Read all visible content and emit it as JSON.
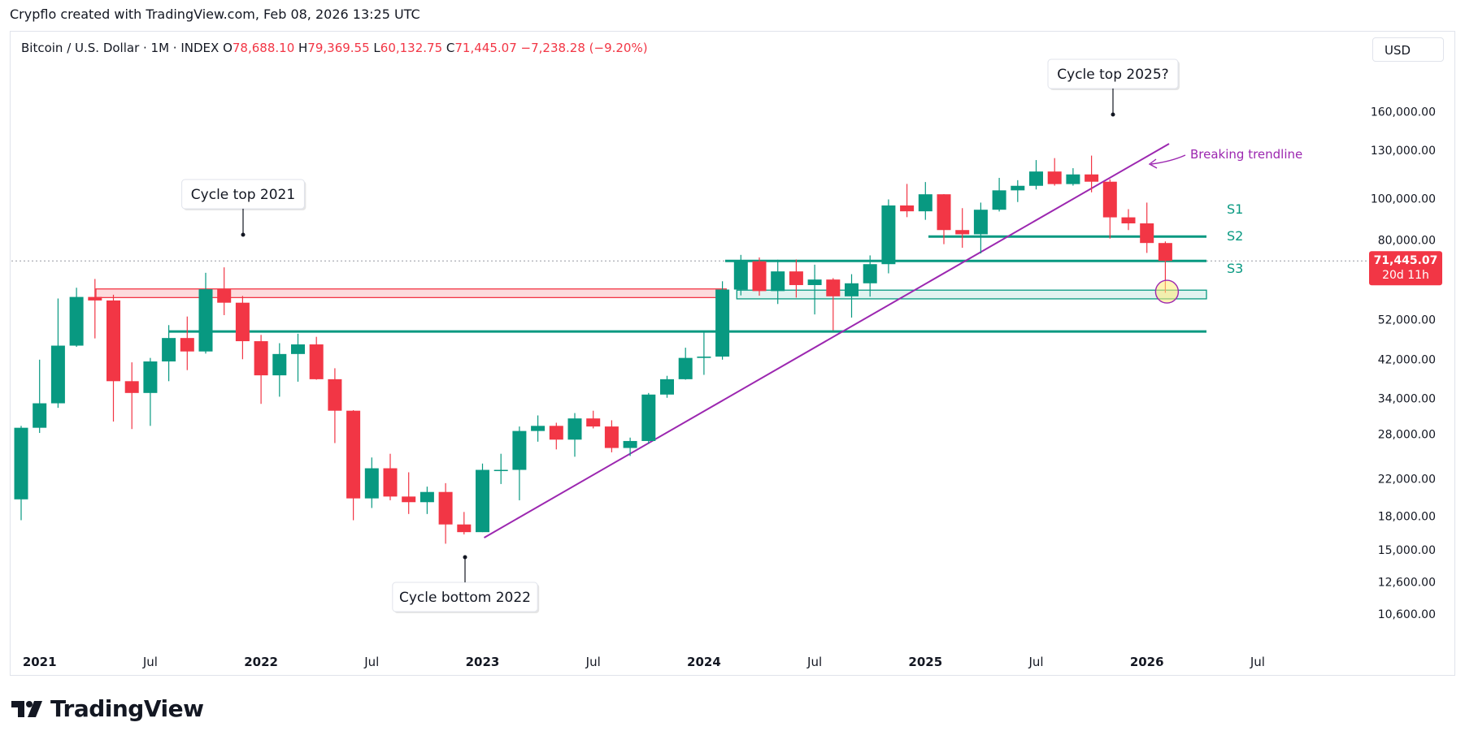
{
  "header": {
    "credit": "Crypflo created with TradingView.com, Feb 08, 2026 13:25 UTC"
  },
  "legend": {
    "symbol": "Bitcoin / U.S. Dollar · 1M · INDEX",
    "open_label": "O",
    "open": "78,688.10",
    "high_label": "H",
    "high": "79,369.55",
    "low_label": "L",
    "low": "60,132.75",
    "close_label": "C",
    "close": "71,445.07",
    "change": "−7,238.28 (−9.20%)"
  },
  "currency_button": "USD",
  "price_tag": {
    "price": "71,445.07",
    "countdown": "20d 11h"
  },
  "brand": {
    "name": "TradingView"
  },
  "colors": {
    "up": "#089981",
    "down": "#f23645",
    "trend": "#9c27b0",
    "level": "#089981",
    "resistance": "#f23645"
  },
  "chart_data": {
    "type": "candlestick",
    "title": "Bitcoin / U.S. Dollar · 1M · INDEX",
    "scale": "log",
    "y_ticks": [
      160000,
      130000,
      100000,
      80000,
      52000,
      42000,
      34000,
      28000,
      22000,
      18000,
      15000,
      12600,
      10600
    ],
    "y_tick_labels": [
      "160,000.00",
      "130,000.00",
      "100,000.00",
      "80,000.00",
      "52,000.00",
      "42,000.00",
      "34,000.00",
      "28,000.00",
      "22,000.00",
      "18,000.00",
      "15,000.00",
      "12,600.00",
      "10,600.00"
    ],
    "x_labels": [
      "2021",
      "Jul",
      "2022",
      "Jul",
      "2023",
      "Jul",
      "2024",
      "Jul",
      "2025",
      "Jul",
      "2026",
      "Jul"
    ],
    "candles": [
      {
        "t": "2020-12",
        "o": 19700,
        "h": 29300,
        "l": 17600,
        "c": 29000
      },
      {
        "t": "2021-01",
        "o": 29000,
        "h": 41900,
        "l": 28200,
        "c": 33100
      },
      {
        "t": "2021-02",
        "o": 33100,
        "h": 58300,
        "l": 32300,
        "c": 45200
      },
      {
        "t": "2021-03",
        "o": 45200,
        "h": 61800,
        "l": 44900,
        "c": 58800
      },
      {
        "t": "2021-04",
        "o": 58800,
        "h": 64800,
        "l": 47000,
        "c": 57700
      },
      {
        "t": "2021-05",
        "o": 57700,
        "h": 59500,
        "l": 30000,
        "c": 37300
      },
      {
        "t": "2021-06",
        "o": 37300,
        "h": 41300,
        "l": 28800,
        "c": 35000
      },
      {
        "t": "2021-07",
        "o": 35000,
        "h": 42300,
        "l": 29300,
        "c": 41500
      },
      {
        "t": "2021-08",
        "o": 41500,
        "h": 50500,
        "l": 37300,
        "c": 47100
      },
      {
        "t": "2021-09",
        "o": 47100,
        "h": 52900,
        "l": 39600,
        "c": 43800
      },
      {
        "t": "2021-10",
        "o": 43800,
        "h": 67000,
        "l": 43300,
        "c": 61300
      },
      {
        "t": "2021-11",
        "o": 61300,
        "h": 69000,
        "l": 53300,
        "c": 57000
      },
      {
        "t": "2021-12",
        "o": 57000,
        "h": 59100,
        "l": 42000,
        "c": 46300
      },
      {
        "t": "2022-01",
        "o": 46300,
        "h": 47900,
        "l": 33000,
        "c": 38500
      },
      {
        "t": "2022-02",
        "o": 38500,
        "h": 45800,
        "l": 34300,
        "c": 43200
      },
      {
        "t": "2022-03",
        "o": 43200,
        "h": 48200,
        "l": 37200,
        "c": 45500
      },
      {
        "t": "2022-04",
        "o": 45500,
        "h": 47400,
        "l": 37600,
        "c": 37700
      },
      {
        "t": "2022-05",
        "o": 37700,
        "h": 40000,
        "l": 26700,
        "c": 31800
      },
      {
        "t": "2022-06",
        "o": 31800,
        "h": 31900,
        "l": 17600,
        "c": 19800
      },
      {
        "t": "2022-07",
        "o": 19800,
        "h": 24700,
        "l": 18800,
        "c": 23300
      },
      {
        "t": "2022-08",
        "o": 23300,
        "h": 25200,
        "l": 19600,
        "c": 20000
      },
      {
        "t": "2022-09",
        "o": 20000,
        "h": 22800,
        "l": 18200,
        "c": 19400
      },
      {
        "t": "2022-10",
        "o": 19400,
        "h": 21100,
        "l": 18200,
        "c": 20500
      },
      {
        "t": "2022-11",
        "o": 20500,
        "h": 21500,
        "l": 15500,
        "c": 17200
      },
      {
        "t": "2022-12",
        "o": 17200,
        "h": 18400,
        "l": 16300,
        "c": 16500
      },
      {
        "t": "2023-01",
        "o": 16500,
        "h": 23900,
        "l": 16500,
        "c": 23100
      },
      {
        "t": "2023-02",
        "o": 23100,
        "h": 25200,
        "l": 21400,
        "c": 23100
      },
      {
        "t": "2023-03",
        "o": 23100,
        "h": 29200,
        "l": 19600,
        "c": 28500
      },
      {
        "t": "2023-04",
        "o": 28500,
        "h": 31000,
        "l": 26900,
        "c": 29300
      },
      {
        "t": "2023-05",
        "o": 29300,
        "h": 29800,
        "l": 25800,
        "c": 27200
      },
      {
        "t": "2023-06",
        "o": 27200,
        "h": 31400,
        "l": 24800,
        "c": 30500
      },
      {
        "t": "2023-07",
        "o": 30500,
        "h": 31800,
        "l": 28900,
        "c": 29200
      },
      {
        "t": "2023-08",
        "o": 29200,
        "h": 30200,
        "l": 25400,
        "c": 26000
      },
      {
        "t": "2023-09",
        "o": 26000,
        "h": 27500,
        "l": 24900,
        "c": 27000
      },
      {
        "t": "2023-10",
        "o": 27000,
        "h": 35000,
        "l": 26600,
        "c": 34700
      },
      {
        "t": "2023-11",
        "o": 34700,
        "h": 38400,
        "l": 34100,
        "c": 37700
      },
      {
        "t": "2023-12",
        "o": 37700,
        "h": 44700,
        "l": 37600,
        "c": 42300
      },
      {
        "t": "2024-01",
        "o": 42300,
        "h": 48900,
        "l": 38600,
        "c": 42600
      },
      {
        "t": "2024-02",
        "o": 42600,
        "h": 64000,
        "l": 41900,
        "c": 61200
      },
      {
        "t": "2024-03",
        "o": 61200,
        "h": 73800,
        "l": 59300,
        "c": 71300
      },
      {
        "t": "2024-04",
        "o": 71300,
        "h": 72800,
        "l": 59200,
        "c": 60700
      },
      {
        "t": "2024-05",
        "o": 60700,
        "h": 71900,
        "l": 56600,
        "c": 67500
      },
      {
        "t": "2024-06",
        "o": 67500,
        "h": 72000,
        "l": 58600,
        "c": 62700
      },
      {
        "t": "2024-07",
        "o": 62700,
        "h": 70000,
        "l": 53500,
        "c": 64600
      },
      {
        "t": "2024-08",
        "o": 64600,
        "h": 65100,
        "l": 49100,
        "c": 59000
      },
      {
        "t": "2024-09",
        "o": 59000,
        "h": 66500,
        "l": 52600,
        "c": 63300
      },
      {
        "t": "2024-10",
        "o": 63300,
        "h": 73600,
        "l": 58900,
        "c": 70200
      },
      {
        "t": "2024-11",
        "o": 70200,
        "h": 99600,
        "l": 66800,
        "c": 96400
      },
      {
        "t": "2024-12",
        "o": 96400,
        "h": 108300,
        "l": 90500,
        "c": 93400
      },
      {
        "t": "2025-01",
        "o": 93400,
        "h": 109400,
        "l": 89200,
        "c": 102400
      },
      {
        "t": "2025-02",
        "o": 102400,
        "h": 102500,
        "l": 78200,
        "c": 84400
      },
      {
        "t": "2025-03",
        "o": 84400,
        "h": 95000,
        "l": 76700,
        "c": 82500
      },
      {
        "t": "2025-04",
        "o": 82500,
        "h": 97900,
        "l": 74400,
        "c": 94200
      },
      {
        "t": "2025-05",
        "o": 94200,
        "h": 111900,
        "l": 93300,
        "c": 104600
      },
      {
        "t": "2025-06",
        "o": 104600,
        "h": 110500,
        "l": 98200,
        "c": 107200
      },
      {
        "t": "2025-07",
        "o": 107200,
        "h": 123200,
        "l": 105100,
        "c": 115800
      },
      {
        "t": "2025-08",
        "o": 115800,
        "h": 124500,
        "l": 107300,
        "c": 108200
      },
      {
        "t": "2025-09",
        "o": 108200,
        "h": 117900,
        "l": 107300,
        "c": 114000
      },
      {
        "t": "2025-10",
        "o": 114000,
        "h": 126200,
        "l": 103500,
        "c": 109600
      },
      {
        "t": "2025-11",
        "o": 109600,
        "h": 111000,
        "l": 80600,
        "c": 90400
      },
      {
        "t": "2025-12",
        "o": 90400,
        "h": 94500,
        "l": 84400,
        "c": 87500
      },
      {
        "t": "2026-01",
        "o": 87500,
        "h": 97900,
        "l": 74600,
        "c": 78700
      },
      {
        "t": "2026-02",
        "o": 78688.1,
        "h": 79369.55,
        "l": 60132.75,
        "c": 71445.07
      }
    ],
    "levels": [
      {
        "name": "S1",
        "price": 81500
      },
      {
        "name": "S2",
        "price": 71445
      },
      {
        "name": "S3",
        "price": 60000
      },
      {
        "name": "",
        "price": 48800
      }
    ],
    "zones": [
      {
        "name": "resistance-2021",
        "from": "2021-04",
        "to": "2024-03",
        "low": 58600,
        "high": 61400
      },
      {
        "name": "S3-zone",
        "from": "2024-03",
        "to": "2026-03",
        "low": 58200,
        "high": 61000
      }
    ],
    "annotations": [
      {
        "text": "Cycle top 2021",
        "at": "2021-11",
        "price": 69000
      },
      {
        "text": "Cycle bottom 2022",
        "at": "2022-12",
        "price": 15500
      },
      {
        "text": "Cycle top 2025?",
        "at": "2025-10",
        "price": 126200
      },
      {
        "text": "Breaking trendline"
      }
    ],
    "trendline": {
      "from": {
        "t": "2023-01",
        "p": 16300
      },
      "to": {
        "t": "2025-12",
        "p": 120000
      }
    }
  }
}
